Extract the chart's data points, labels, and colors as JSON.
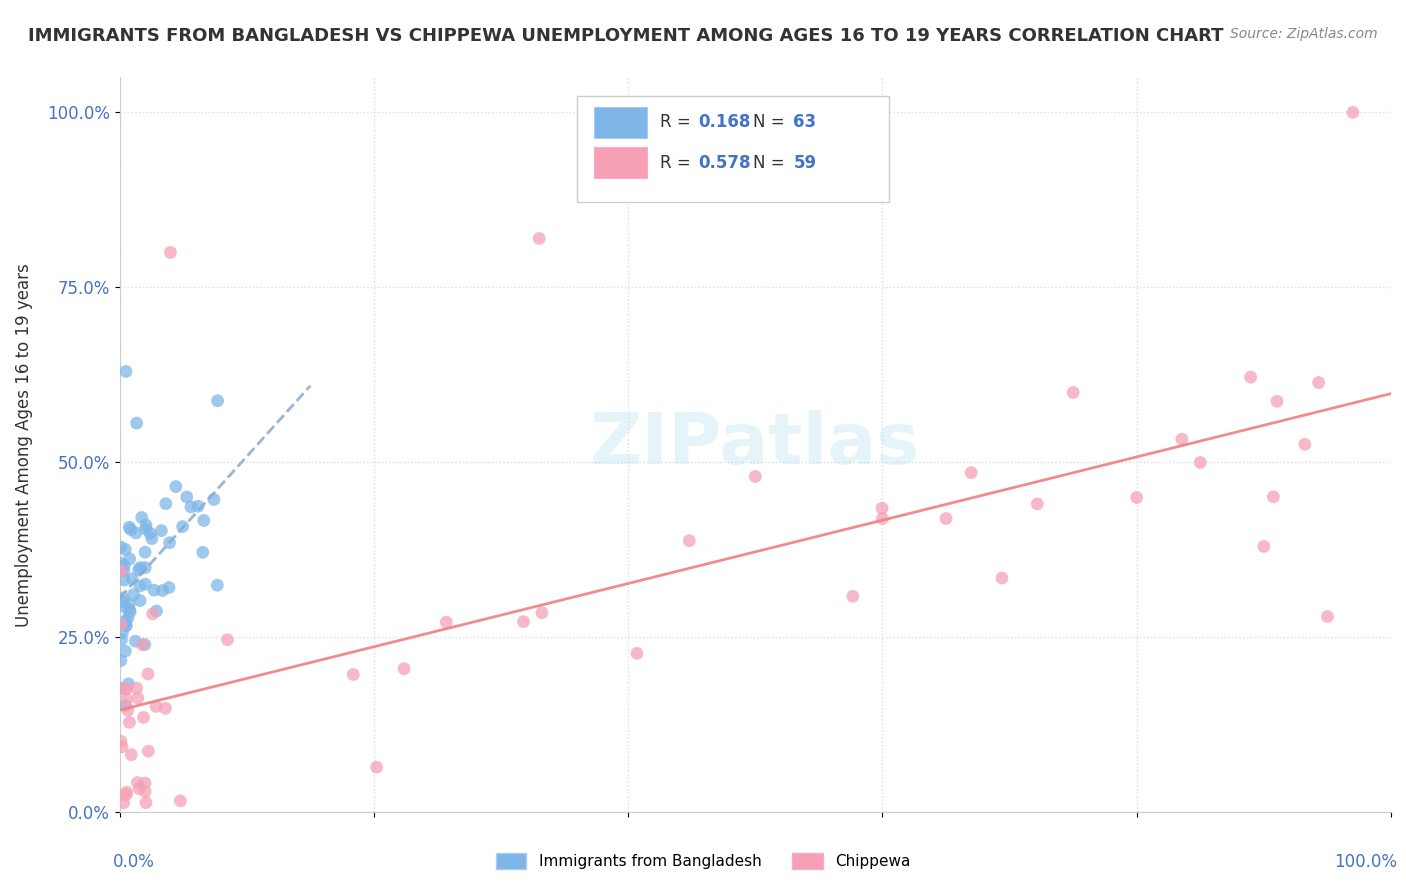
{
  "title": "IMMIGRANTS FROM BANGLADESH VS CHIPPEWA UNEMPLOYMENT AMONG AGES 16 TO 19 YEARS CORRELATION CHART",
  "source": "Source: ZipAtlas.com",
  "ylabel": "Unemployment Among Ages 16 to 19 years",
  "legend_blue_label": "Immigrants from Bangladesh",
  "legend_pink_label": "Chippewa",
  "blue_color": "#7EB6E8",
  "pink_color": "#F5A0B5",
  "blue_line_color": "#88AACC",
  "pink_line_color": "#F08080",
  "watermark": "ZIPatlas",
  "xlim": [
    0.0,
    1.0
  ],
  "ylim": [
    0.0,
    1.05
  ],
  "ytick_labels": [
    "0.0%",
    "25.0%",
    "50.0%",
    "75.0%",
    "100.0%"
  ],
  "ytick_values": [
    0.0,
    0.25,
    0.5,
    0.75,
    1.0
  ],
  "background_color": "#FFFFFF",
  "grid_color": "#DDDDDD",
  "blue_r": "0.168",
  "blue_n": "63",
  "pink_r": "0.578",
  "pink_n": "59"
}
